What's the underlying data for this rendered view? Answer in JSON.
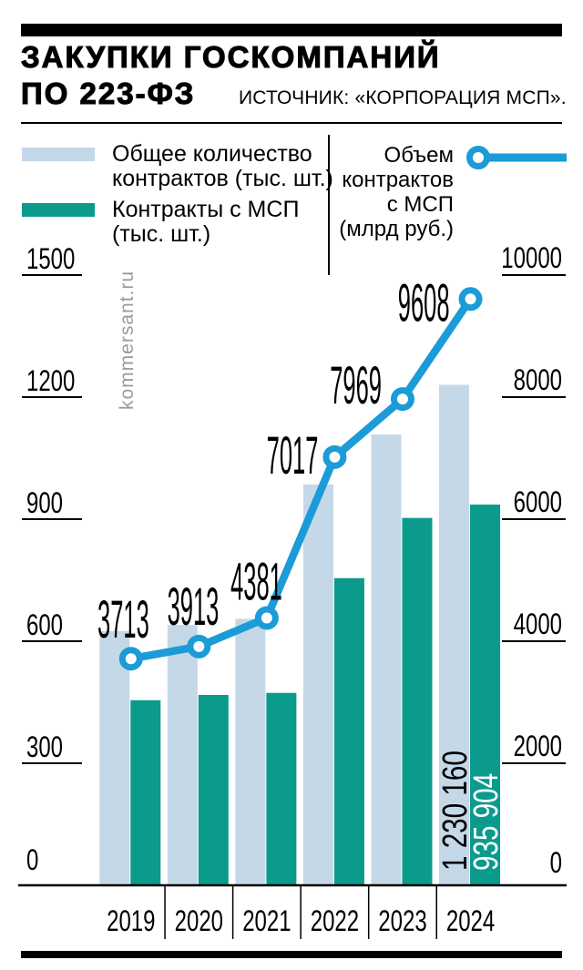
{
  "header": {
    "title_line1": "ЗАКУПКИ ГОСКОМПАНИЙ",
    "title_line2": "ПО 223-ФЗ",
    "source": "ИСТОЧНИК: «КОРПОРАЦИЯ МСП»."
  },
  "watermark": "kommersant.ru",
  "legend": {
    "total_label": "Общее количество\nконтрактов (тыс. шт.)",
    "smp_label": "Контракты с МСП\n(тыс. шт.)",
    "volume_label": "Объем\nконтрактов\nс МСП\n(млрд руб.)"
  },
  "colors": {
    "bar_total": "#c5d8e8",
    "bar_smp": "#0a9b8d",
    "line": "#1b9bd7",
    "watermark_gray": "#9b9b9b",
    "text": "#000000"
  },
  "chart_data": {
    "type": "bar",
    "subtype": "grouped-bars-with-line-overlay",
    "categories": [
      "2019",
      "2020",
      "2021",
      "2022",
      "2023",
      "2024"
    ],
    "series": [
      {
        "name": "Общее количество контрактов (тыс. шт.)",
        "kind": "bar",
        "color": "#c5d8e8",
        "axis": "left",
        "values": [
          625,
          640,
          655,
          985,
          1108,
          1230.16
        ]
      },
      {
        "name": "Контракты с МСП (тыс. шт.)",
        "kind": "bar",
        "color": "#0a9b8d",
        "axis": "left",
        "values": [
          455,
          468,
          473,
          755,
          903,
          935.904
        ]
      },
      {
        "name": "Объем контрактов с МСП (млрд руб.)",
        "kind": "line",
        "color": "#1b9bd7",
        "axis": "right",
        "values": [
          3713,
          3913,
          4381,
          7017,
          7969,
          9608
        ],
        "point_labels": [
          "3713",
          "3913",
          "4381",
          "7017",
          "7969",
          "9608"
        ]
      }
    ],
    "left_axis": {
      "ticks": [
        0,
        300,
        600,
        900,
        1200,
        1500
      ],
      "max": 1500,
      "grid": "tick-underlines-only"
    },
    "right_axis": {
      "ticks": [
        0,
        2000,
        4000,
        6000,
        8000,
        10000
      ],
      "max": 10000,
      "grid": "tick-underlines-only"
    },
    "bar_value_annotations": [
      {
        "category": "2024",
        "series": "total",
        "label": "1 230 160",
        "text_color": "#000000"
      },
      {
        "category": "2024",
        "series": "smp",
        "label": "935 904",
        "text_color": "#ffffff"
      }
    ],
    "legend_position": "top"
  }
}
